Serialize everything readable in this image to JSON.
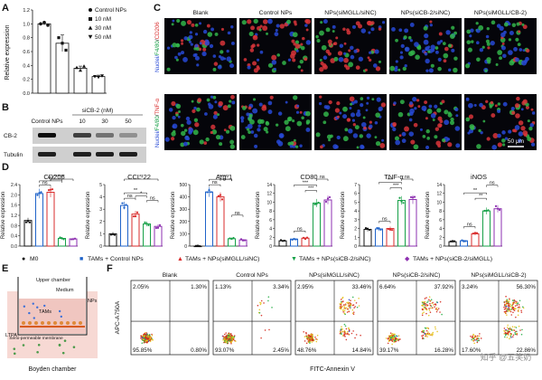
{
  "figure": {
    "panel_labels": [
      "A",
      "B",
      "C",
      "D",
      "E",
      "F"
    ],
    "colors": {
      "black": "#111111",
      "blue": "#1f63c9",
      "red": "#d92b2b",
      "green": "#16a047",
      "purple": "#8d2fb0",
      "white": "#ffffff"
    }
  },
  "panel_a": {
    "ylabel": "Relative expression",
    "legend": [
      "Control NPs",
      "10 nM",
      "30 nM",
      "50 nM"
    ],
    "legend_markers": [
      "circle",
      "square",
      "triangle-up",
      "triangle-down"
    ],
    "chart_data": {
      "type": "bar",
      "categories": [
        "Control NPs",
        "10 nM",
        "30 nM",
        "50 nM"
      ],
      "values": [
        1.0,
        0.72,
        0.36,
        0.24
      ],
      "errors": [
        0.02,
        0.12,
        0.03,
        0.02
      ],
      "ylim": [
        0,
        1.2
      ],
      "yticks": [
        "0.0",
        "0.2",
        "0.4",
        "0.6",
        "0.8",
        "1.0",
        "1.2"
      ],
      "points": [
        [
          1.0,
          1.02,
          0.98
        ],
        [
          0.8,
          0.72,
          0.62
        ],
        [
          0.37,
          0.33,
          0.39
        ],
        [
          0.24,
          0.23,
          0.25
        ]
      ]
    }
  },
  "panel_b": {
    "header": "siCB-2 (nM)",
    "lanes": [
      "Control NPs",
      "10",
      "30",
      "50"
    ],
    "rows": [
      "CB-2",
      "Tubulin"
    ]
  },
  "panel_c": {
    "columns": [
      "Blank",
      "Control NPs",
      "NPs(siMGLL/siNC)",
      "NPs(siCB-2/siNC)",
      "NPs(siMGLL/CB-2)"
    ],
    "row1_label": {
      "nuclei": "Nuclei/",
      "marker": "F4/80",
      "slash": "/",
      "target": "CD206"
    },
    "row2_label": {
      "nuclei": "Nuclei/",
      "marker": "F4/80",
      "slash": "/",
      "target": "TNF-α"
    },
    "scale_bar": "50 μm"
  },
  "panel_d": {
    "ylabel": "Relative expression",
    "legend": [
      "M0",
      "TAMs + Control NPs",
      "TAMs + NPs(siMGLL/siNC)",
      "TAMs + NPs(siCB-2/siNC)",
      "TAMs + NPs(siCB-2/siMGLL)"
    ],
    "legend_markers": [
      "●",
      "■",
      "▲",
      "▼",
      "◆"
    ],
    "groups": [
      "M0",
      "TAMs + Control NPs",
      "TAMs + NPs(siMGLL/siNC)",
      "TAMs + NPs(siCB-2/siNC)",
      "TAMs + NPs(siCB-2/siMGLL)"
    ],
    "chart_data": [
      {
        "type": "bar",
        "title": "CD206",
        "values": [
          1.0,
          2.05,
          2.1,
          0.3,
          0.28
        ],
        "ylim": [
          0,
          2.4
        ],
        "yticks": [
          "0.0",
          "0.4",
          "0.8",
          "1.2",
          "1.6",
          "2.0",
          "2.4"
        ],
        "annotations": [
          {
            "from": 1,
            "to": 2,
            "text": "ns"
          },
          {
            "from": 1,
            "to": 3,
            "text": "***"
          },
          {
            "from": 2,
            "to": 3,
            "text": "***"
          },
          {
            "from": 2,
            "to": 4,
            "text": "***"
          }
        ]
      },
      {
        "type": "bar",
        "title": "CCL-22",
        "values": [
          1.0,
          3.3,
          2.6,
          1.8,
          1.6
        ],
        "ylim": [
          0,
          5
        ],
        "yticks": [
          "0",
          "1",
          "2",
          "3",
          "4",
          "5"
        ],
        "annotations": [
          {
            "from": 1,
            "to": 2,
            "text": "ns"
          },
          {
            "from": 1,
            "to": 3,
            "text": "**"
          },
          {
            "from": 2,
            "to": 3,
            "text": "*"
          },
          {
            "from": 3,
            "to": 4,
            "text": "ns"
          },
          {
            "from": 1,
            "to": 4,
            "text": "**"
          }
        ]
      },
      {
        "type": "bar",
        "title": "Arg-1",
        "values": [
          0.02,
          440,
          400,
          60,
          50
        ],
        "ylim": [
          0,
          500
        ],
        "yticks": [
          "0",
          "100",
          "200",
          "300",
          "400",
          "500"
        ],
        "annotations": [
          {
            "from": 1,
            "to": 2,
            "text": "ns"
          },
          {
            "from": 1,
            "to": 3,
            "text": "***"
          },
          {
            "from": 2,
            "to": 3,
            "text": "***"
          },
          {
            "from": 3,
            "to": 4,
            "text": "ns"
          }
        ]
      },
      {
        "type": "bar",
        "title": "CD80",
        "values": [
          1.2,
          1.6,
          1.8,
          9.8,
          10.5
        ],
        "ylim": [
          0,
          14
        ],
        "yticks": [
          "0",
          "2",
          "4",
          "6",
          "8",
          "10",
          "12",
          "14"
        ],
        "annotations": [
          {
            "from": 1,
            "to": 2,
            "text": "ns"
          },
          {
            "from": 2,
            "to": 3,
            "text": "***"
          },
          {
            "from": 1,
            "to": 3,
            "text": "***"
          },
          {
            "from": 3,
            "to": 4,
            "text": "ns"
          }
        ]
      },
      {
        "type": "bar",
        "title": "TNF-α",
        "values": [
          1.9,
          1.95,
          2.0,
          5.2,
          5.3
        ],
        "ylim": [
          0,
          7
        ],
        "yticks": [
          "0",
          "1",
          "2",
          "3",
          "4",
          "5",
          "6",
          "7"
        ],
        "annotations": [
          {
            "from": 1,
            "to": 2,
            "text": "ns"
          },
          {
            "from": 2,
            "to": 3,
            "text": "***"
          },
          {
            "from": 1,
            "to": 3,
            "text": "***"
          },
          {
            "from": 3,
            "to": 4,
            "text": "ns"
          }
        ]
      },
      {
        "type": "bar",
        "title": "iNOS",
        "values": [
          1.0,
          1.2,
          2.8,
          8.0,
          8.5
        ],
        "ylim": [
          0,
          14
        ],
        "yticks": [
          "0",
          "2",
          "4",
          "6",
          "8",
          "10",
          "12",
          "14"
        ],
        "annotations": [
          {
            "from": 1,
            "to": 2,
            "text": "ns"
          },
          {
            "from": 2,
            "to": 3,
            "text": "**"
          },
          {
            "from": 1,
            "to": 3,
            "text": "**"
          },
          {
            "from": 3,
            "to": 4,
            "text": "ns"
          }
        ]
      }
    ]
  },
  "panel_e": {
    "labels": {
      "upper": "Upper chamber",
      "medium": "Medium",
      "nps": "NPs",
      "tams": "TAMs",
      "membrane": "Semi-permeable membrane",
      "ltpa": "LTPA"
    },
    "caption": "Boyden chamber"
  },
  "panel_f": {
    "ylabel": "APC-A750A",
    "xlabel": "FITC-Annexin V",
    "chart_data": {
      "type": "scatter",
      "panels": [
        {
          "title": "Blank",
          "quadrants": {
            "ul": "2.05%",
            "ur": "1.30%",
            "ll": "95.85%",
            "lr": "0.80%"
          }
        },
        {
          "title": "Control NPs",
          "quadrants": {
            "ul": "1.13%",
            "ur": "3.34%",
            "ll": "93.07%",
            "lr": "2.45%"
          }
        },
        {
          "title": "NPs(siMGLL/siNC)",
          "quadrants": {
            "ul": "2.95%",
            "ur": "33.46%",
            "ll": "48.76%",
            "lr": "14.84%"
          }
        },
        {
          "title": "NPs(siCB-2/siNC)",
          "quadrants": {
            "ul": "6.64%",
            "ur": "37.92%",
            "ll": "39.17%",
            "lr": "16.28%"
          }
        },
        {
          "title": "NPs(siMGLL/siCB-2)",
          "quadrants": {
            "ul": "3.24%",
            "ur": "56.30%",
            "ll": "17.60%",
            "lr": "22.86%"
          }
        }
      ]
    },
    "watermark": "知乎 @五笑奶"
  }
}
